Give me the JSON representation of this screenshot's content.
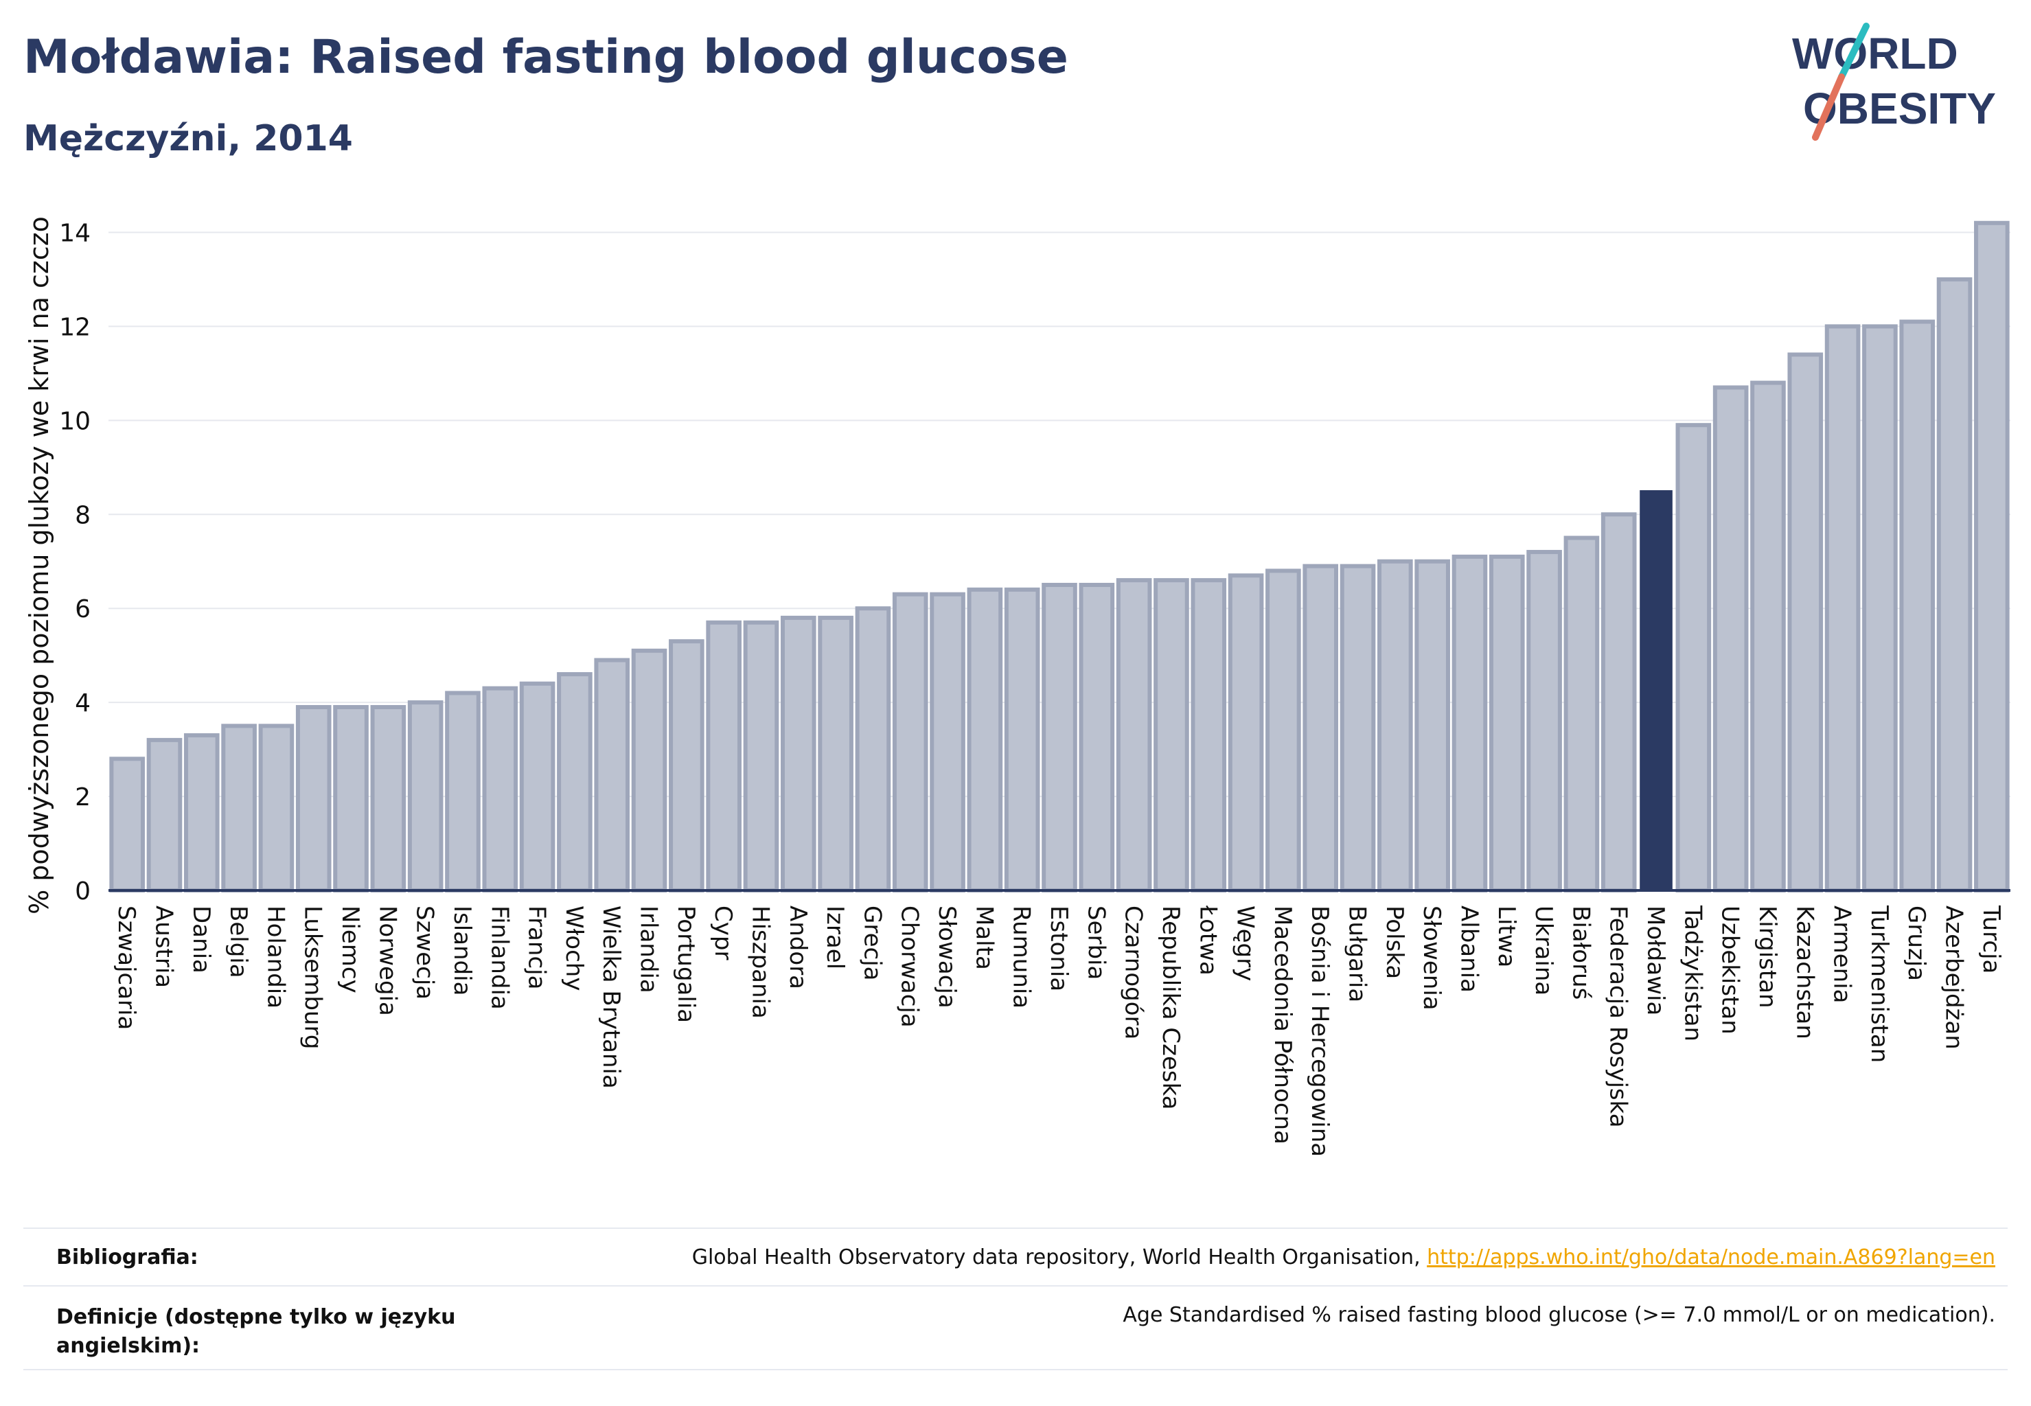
{
  "title": "Mołdawia: Raised fasting blood glucose",
  "subtitle": "Mężczyźni, 2014",
  "logo": {
    "line1": "WORLD",
    "line2": "OBESITY"
  },
  "colors": {
    "bar": "#bcc2d0",
    "bar_stroke": "#9ea6ba",
    "highlight": "#2b3a63",
    "accent_teal": "#2bbcc0",
    "accent_coral": "#e2725b",
    "link": "#f0a500"
  },
  "chart_data": {
    "type": "bar",
    "ylabel": "% podwyższonego poziomu glukozy we krwi na czczo",
    "ylim": [
      0,
      15
    ],
    "yticks": [
      0,
      2,
      4,
      6,
      8,
      10,
      12,
      14
    ],
    "grid": true,
    "highlight": "Mołdawia",
    "categories": [
      "Szwajcaria",
      "Austria",
      "Dania",
      "Belgia",
      "Holandia",
      "Luksemburg",
      "Niemcy",
      "Norwegia",
      "Szwecja",
      "Islandia",
      "Finlandia",
      "Francja",
      "Włochy",
      "Wielka Brytania",
      "Irlandia",
      "Portugalia",
      "Cypr",
      "Hiszpania",
      "Andora",
      "Izrael",
      "Grecja",
      "Chorwacja",
      "Słowacja",
      "Malta",
      "Rumunia",
      "Estonia",
      "Serbia",
      "Czarnogóra",
      "Republika Czeska",
      "Łotwa",
      "Węgry",
      "Macedonia Północna",
      "Bośnia i Hercegowina",
      "Bułgaria",
      "Polska",
      "Słowenia",
      "Albania",
      "Litwa",
      "Ukraina",
      "Białoruś",
      "Federacja Rosyjska",
      "Mołdawia",
      "Tadżykistan",
      "Uzbekistan",
      "Kirgistan",
      "Kazachstan",
      "Armenia",
      "Turkmenistan",
      "Gruzja",
      "Azerbejdżan",
      "Turcja"
    ],
    "values": [
      2.8,
      3.2,
      3.3,
      3.5,
      3.5,
      3.9,
      3.9,
      3.9,
      4.0,
      4.2,
      4.3,
      4.4,
      4.6,
      4.9,
      5.1,
      5.3,
      5.7,
      5.7,
      5.8,
      5.8,
      6.0,
      6.3,
      6.3,
      6.4,
      6.4,
      6.5,
      6.5,
      6.6,
      6.6,
      6.6,
      6.7,
      6.8,
      6.9,
      6.9,
      7.0,
      7.0,
      7.1,
      7.1,
      7.2,
      7.5,
      8.0,
      8.5,
      9.9,
      10.7,
      10.8,
      11.4,
      12.0,
      12.0,
      12.1,
      13.0,
      14.2
    ]
  },
  "footer": {
    "bibliography_label": "Bibliografia:",
    "bibliography_text": "Global Health Observatory data repository, World Health Organisation, ",
    "bibliography_link": "http://apps.who.int/gho/data/node.main.A869?lang=en",
    "definitions_label_1": "Definicje (dostępne tylko w języku",
    "definitions_label_2": "angielskim):",
    "definitions_text": "Age Standardised % raised fasting blood glucose (>= 7.0 mmol/L or on medication)."
  }
}
